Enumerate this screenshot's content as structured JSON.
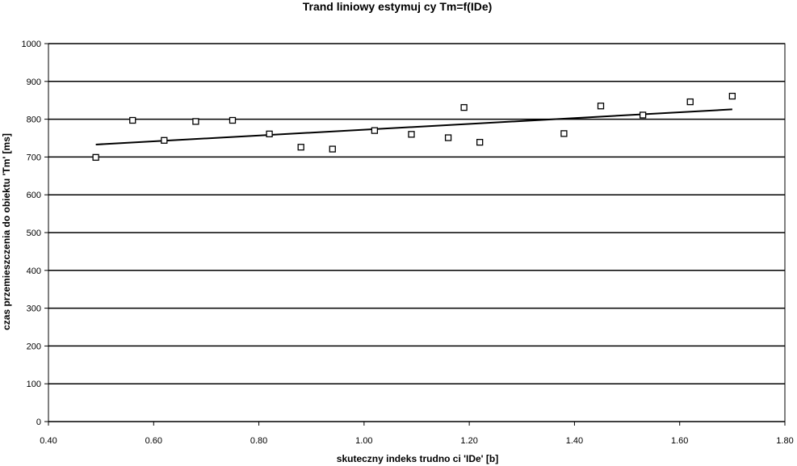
{
  "chart_data": {
    "type": "scatter",
    "title": "Trand liniowy estymuj  cy Tm=f(IDe)",
    "xlabel": "skuteczny indeks trudno  ci 'IDe' [b]",
    "ylabel": "czas przemieszczenia do obiektu 'Tm' [ms]",
    "xlim": [
      0.4,
      1.8
    ],
    "ylim": [
      0,
      1000
    ],
    "x_ticks": [
      "0.40",
      "0.60",
      "0.80",
      "1.00",
      "1.20",
      "1.40",
      "1.60",
      "1.80"
    ],
    "y_ticks": [
      "0",
      "100",
      "200",
      "300",
      "400",
      "500",
      "600",
      "700",
      "800",
      "900",
      "1000"
    ],
    "grid": "horizontal",
    "legend": "none",
    "series": [
      {
        "marker": "hollow-square",
        "color": "#000000",
        "points": [
          {
            "x": 0.49,
            "y": 699
          },
          {
            "x": 0.56,
            "y": 797
          },
          {
            "x": 0.62,
            "y": 744
          },
          {
            "x": 0.68,
            "y": 794
          },
          {
            "x": 0.75,
            "y": 797
          },
          {
            "x": 0.82,
            "y": 761
          },
          {
            "x": 0.88,
            "y": 726
          },
          {
            "x": 0.94,
            "y": 721
          },
          {
            "x": 1.02,
            "y": 770
          },
          {
            "x": 1.09,
            "y": 760
          },
          {
            "x": 1.16,
            "y": 751
          },
          {
            "x": 1.19,
            "y": 831
          },
          {
            "x": 1.22,
            "y": 739
          },
          {
            "x": 1.38,
            "y": 762
          },
          {
            "x": 1.45,
            "y": 835
          },
          {
            "x": 1.53,
            "y": 811
          },
          {
            "x": 1.62,
            "y": 846
          },
          {
            "x": 1.7,
            "y": 861
          }
        ]
      }
    ],
    "trendline": {
      "type": "linear",
      "color": "#000000",
      "x": [
        0.49,
        1.7
      ],
      "y": [
        733,
        826
      ]
    }
  }
}
